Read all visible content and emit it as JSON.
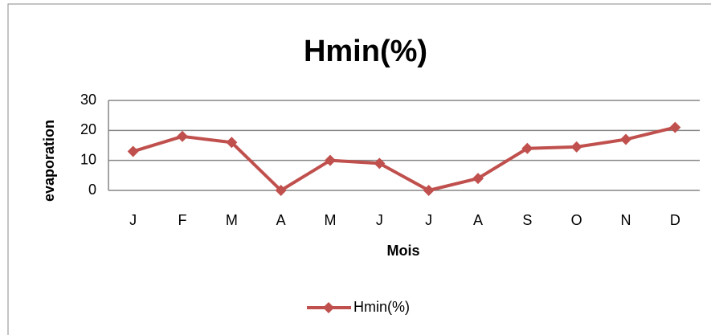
{
  "chart_data": {
    "type": "line",
    "title": "Hmin(%)",
    "x_label": "Mois",
    "y_label": "evaporation",
    "categories": [
      "J",
      "F",
      "M",
      "A",
      "M",
      "J",
      "J",
      "A",
      "S",
      "O",
      "N",
      "D"
    ],
    "series": [
      {
        "name": "Hmin(%)",
        "color": "#c0504d",
        "values": [
          13,
          18,
          16,
          0,
          10,
          9,
          0,
          4,
          14,
          14.5,
          17,
          21
        ]
      }
    ],
    "ylim": [
      0,
      30
    ],
    "yticks": [
      0,
      10,
      20,
      30
    ],
    "grid": true,
    "legend": "bottom"
  }
}
